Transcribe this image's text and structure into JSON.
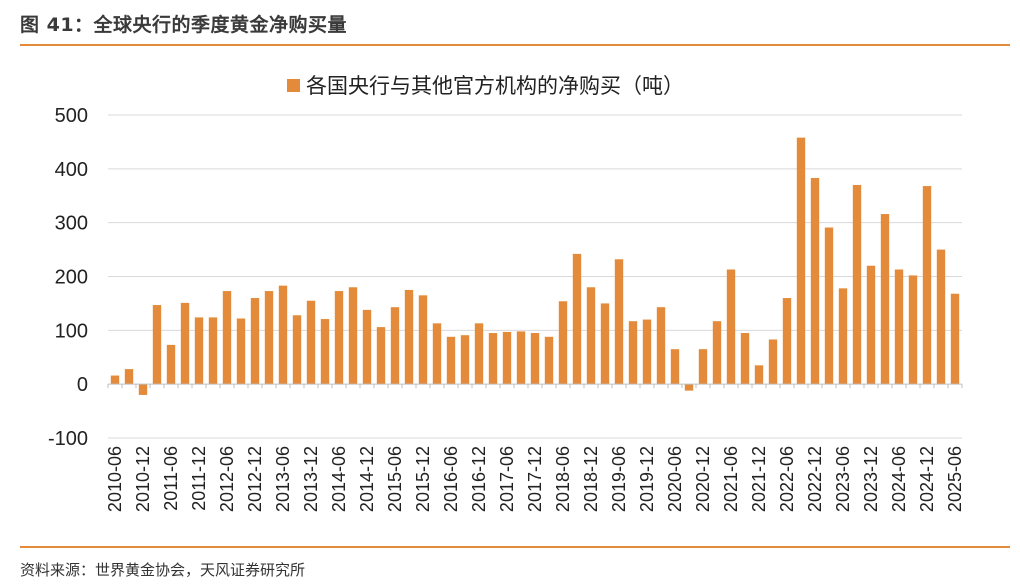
{
  "figure": {
    "title": "图 41：全球央行的季度黄金净购买量",
    "source": "资料来源：世界黄金协会，天风证券研究所"
  },
  "colors": {
    "bar": "#E38B3A",
    "rule": "#E38B3A",
    "grid": "#D9D9D9"
  },
  "chart_data": {
    "type": "bar",
    "legend": {
      "label": "各国央行与其他官方机构的净购买（吨）",
      "position": "top-center"
    },
    "ylim": [
      -100,
      500
    ],
    "yticks": [
      -100,
      0,
      100,
      200,
      300,
      400,
      500
    ],
    "grid": true,
    "x_tick_labels": [
      "2010-06",
      "2010-12",
      "2011-06",
      "2011-12",
      "2012-06",
      "2012-12",
      "2013-06",
      "2013-12",
      "2014-06",
      "2014-12",
      "2015-06",
      "2015-12",
      "2016-06",
      "2016-12",
      "2017-06",
      "2017-12",
      "2018-06",
      "2018-12",
      "2019-06",
      "2019-12",
      "2020-06",
      "2020-12",
      "2021-06",
      "2021-12",
      "2022-06",
      "2022-12",
      "2023-06",
      "2023-12",
      "2024-06",
      "2024-12",
      "2025-06"
    ],
    "series": [
      {
        "name": "各国央行与其他官方机构的净购买（吨）",
        "values": [
          16,
          28,
          -20,
          147,
          73,
          151,
          124,
          124,
          173,
          122,
          160,
          173,
          183,
          128,
          155,
          121,
          173,
          180,
          138,
          106,
          143,
          175,
          165,
          113,
          88,
          91,
          113,
          95,
          97,
          98,
          95,
          88,
          154,
          242,
          180,
          150,
          232,
          117,
          120,
          143,
          65,
          -12,
          65,
          117,
          213,
          95,
          35,
          83,
          160,
          458,
          383,
          291,
          178,
          370,
          220,
          316,
          213,
          202,
          368,
          250,
          168
        ]
      }
    ]
  }
}
